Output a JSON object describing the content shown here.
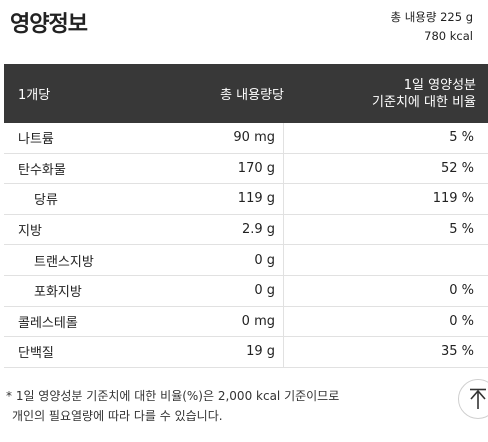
{
  "title": "영양정보",
  "summary": {
    "total": "총 내용량 225 g",
    "kcal": "780 kcal"
  },
  "table": {
    "headers": {
      "per": "1개당",
      "total": "총 내용량당",
      "daily_line1": "1일 영양성분",
      "daily_line2": "기준치에 대한 비율"
    },
    "rows": [
      {
        "name": "나트륨",
        "amount": "90 mg",
        "percent": "5 %"
      },
      {
        "name": "탄수화물",
        "amount": "170 g",
        "percent": "52 %"
      },
      {
        "name": "당류",
        "amount": "119 g",
        "percent": "119 %"
      },
      {
        "name": "지방",
        "amount": "2.9 g",
        "percent": "5 %"
      },
      {
        "name": "트랜스지방",
        "amount": "0 g",
        "percent": ""
      },
      {
        "name": "포화지방",
        "amount": "0 g",
        "percent": "0 %"
      },
      {
        "name": "콜레스테롤",
        "amount": "0 mg",
        "percent": "0 %"
      },
      {
        "name": "단백질",
        "amount": "19 g",
        "percent": "35 %"
      }
    ]
  },
  "note": {
    "line1": "* 1일 영양성분 기준치에 대한 비율(%)은 2,000 kcal 기준이므로",
    "line2": "개인의 필요열량에 따라 다를 수 있습니다."
  },
  "icons": {
    "scroll_top": "arrow-up-icon"
  }
}
